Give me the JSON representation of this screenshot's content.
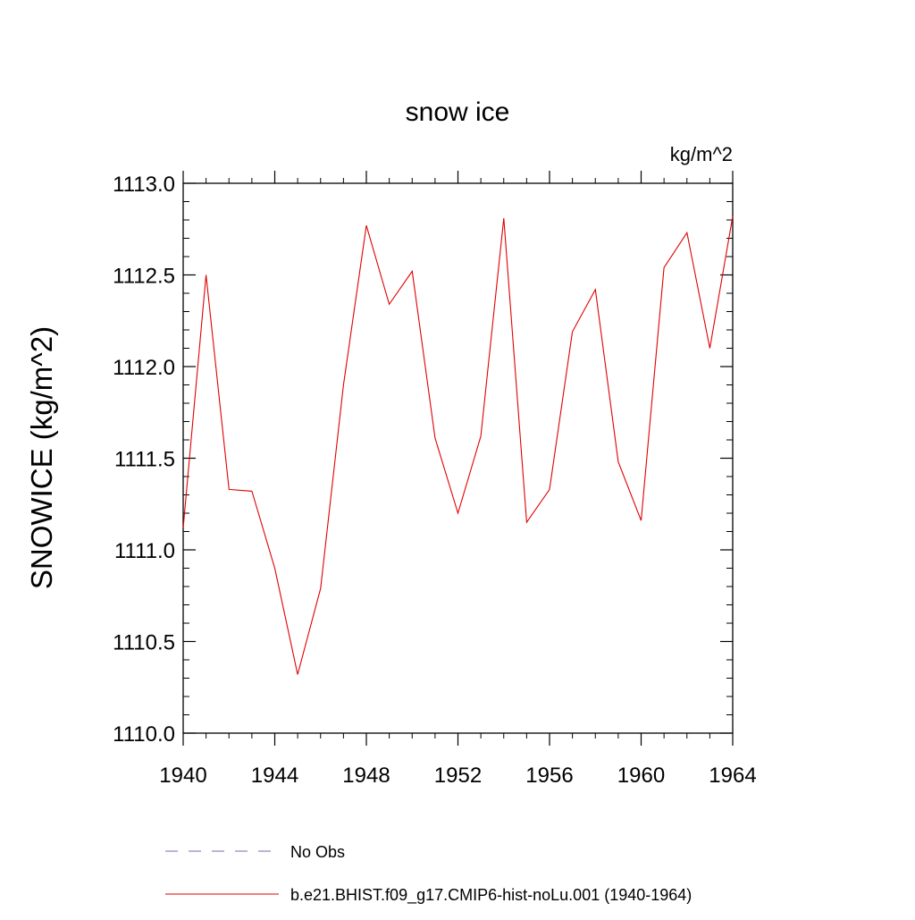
{
  "chart_data": {
    "type": "line",
    "title": "snow ice",
    "units_label": "kg/m^2",
    "ylabel": "SNOWICE  (kg/m^2)",
    "xlabel": "",
    "xlim": [
      1940,
      1964
    ],
    "ylim": [
      1110.0,
      1113.0
    ],
    "x_ticks": [
      1940,
      1944,
      1948,
      1952,
      1956,
      1960,
      1964
    ],
    "y_ticks": [
      "1110.0",
      "1110.5",
      "1111.0",
      "1111.5",
      "1112.0",
      "1112.5",
      "1113.0"
    ],
    "grid": false,
    "legend_position": "bottom",
    "series": [
      {
        "name": "b.e21.BHIST.f09_g17.CMIP6-hist-noLu.001 (1940-1964)",
        "color": "#e00000",
        "style": "solid",
        "x": [
          1940,
          1941,
          1942,
          1943,
          1944,
          1945,
          1946,
          1947,
          1948,
          1949,
          1950,
          1951,
          1952,
          1953,
          1954,
          1955,
          1956,
          1957,
          1958,
          1959,
          1960,
          1961,
          1962,
          1963,
          1964
        ],
        "values": [
          1111.12,
          1112.5,
          1111.33,
          1111.32,
          1110.9,
          1110.32,
          1110.79,
          1111.9,
          1112.77,
          1112.34,
          1112.52,
          1111.61,
          1111.2,
          1111.62,
          1112.81,
          1111.15,
          1111.33,
          1112.19,
          1112.42,
          1111.48,
          1111.16,
          1112.54,
          1112.73,
          1112.1,
          1112.82
        ]
      }
    ],
    "legend": [
      {
        "label": "No Obs",
        "color": "#6f6fb8",
        "style": "dashed"
      },
      {
        "label": "b.e21.BHIST.f09_g17.CMIP6-hist-noLu.001 (1940-1964)",
        "color": "#e00000",
        "style": "solid"
      }
    ]
  }
}
